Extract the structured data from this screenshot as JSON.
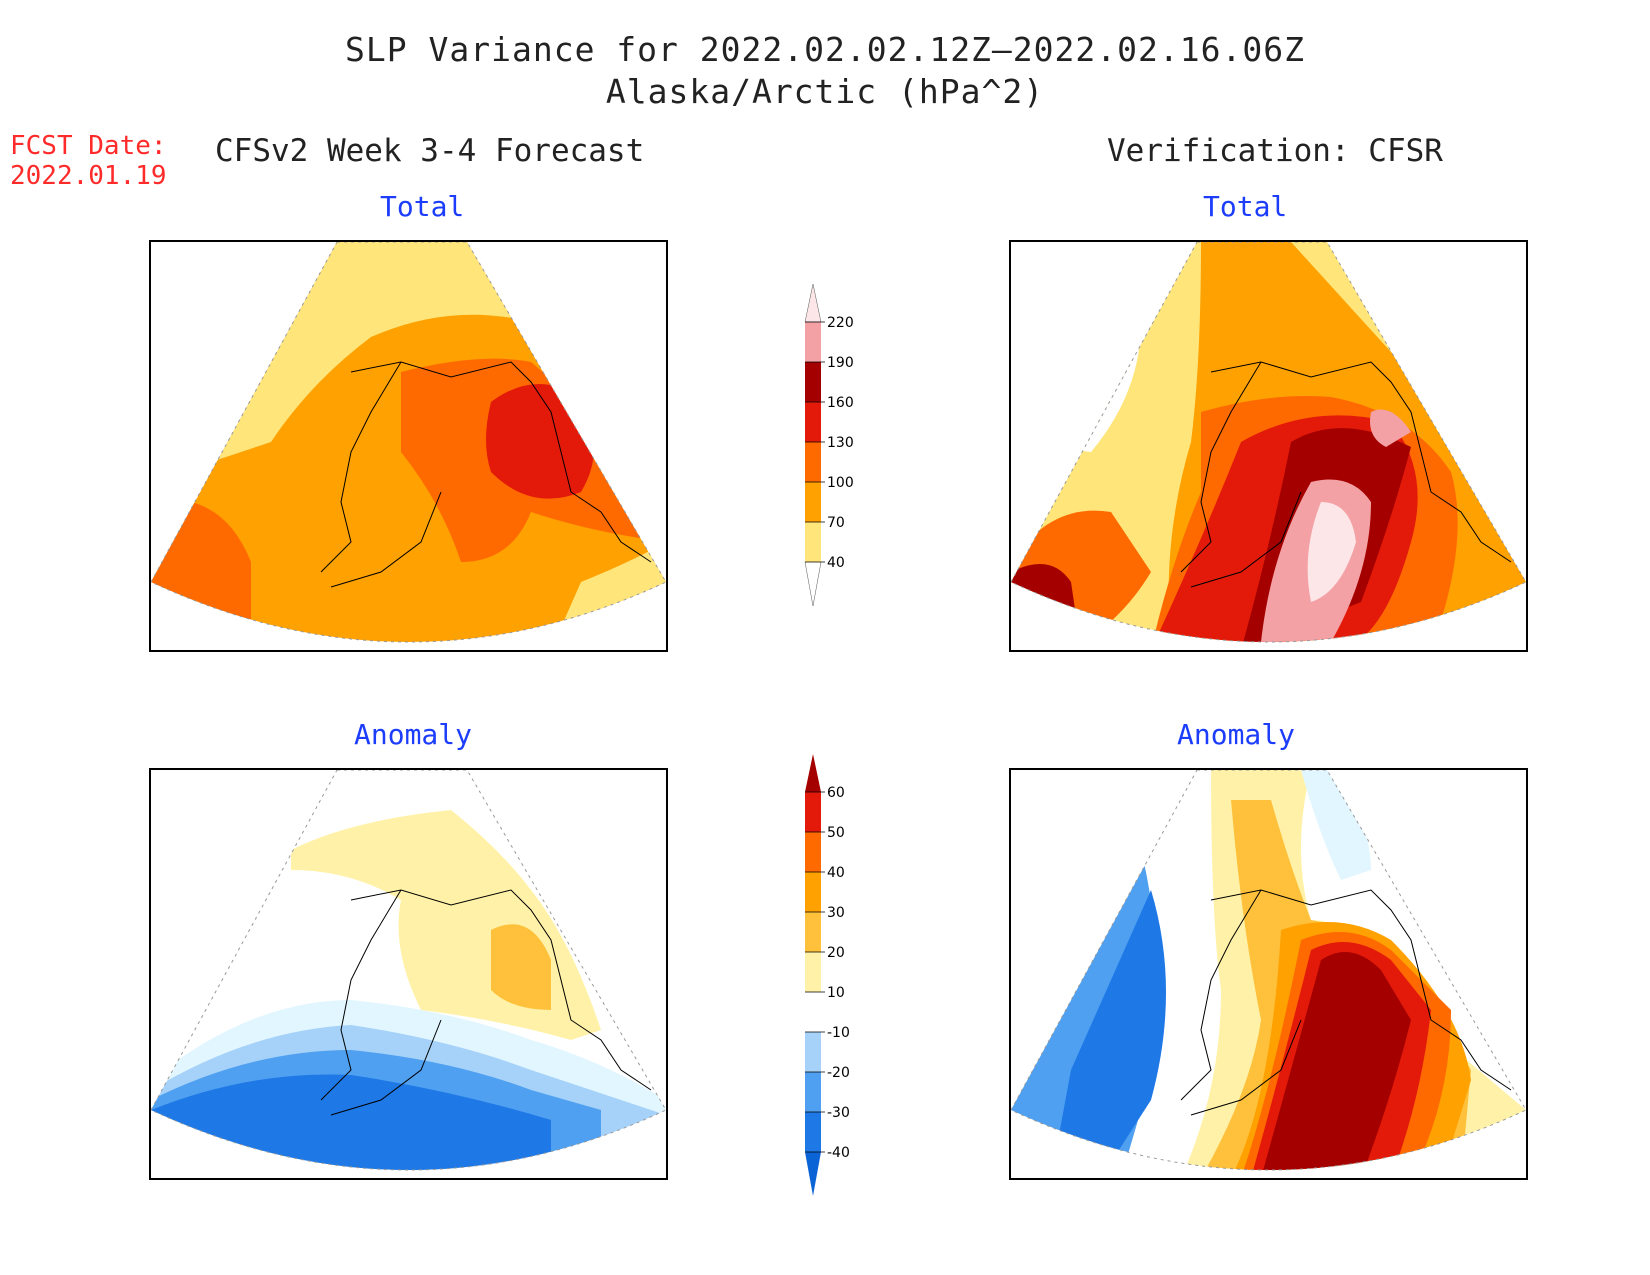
{
  "title": {
    "line1": "SLP Variance for 2022.02.02.12Z—2022.02.16.06Z",
    "line2": "Alaska/Arctic (hPa^2)"
  },
  "fcst": {
    "label": "FCST Date:",
    "date": "2022.01.19"
  },
  "left_header": "CFSv2 Week 3-4 Forecast",
  "right_header": "Verification: CFSR",
  "panels": {
    "forecast_total": {
      "label": "Total"
    },
    "verif_total": {
      "label": "Total"
    },
    "forecast_anom": {
      "label": "Anomaly"
    },
    "verif_anom": {
      "label": "Anomaly"
    }
  },
  "colorbar_total": {
    "levels": [
      "40",
      "70",
      "100",
      "130",
      "160",
      "190",
      "220"
    ],
    "colors": [
      "#ffe57a",
      "#ffa100",
      "#ff6a00",
      "#e31a0a",
      "#a50000",
      "#f3a1a4",
      "#fde6e7"
    ]
  },
  "colorbar_anom": {
    "levels": [
      "-40",
      "-30",
      "-20",
      "-10",
      "10",
      "20",
      "30",
      "40",
      "50",
      "60"
    ],
    "colors": [
      "#0b64d6",
      "#1e78e6",
      "#4fa0f0",
      "#a6d2fa",
      "#e2f6ff",
      "#ffffff",
      "#fff2a8",
      "#ffc13b",
      "#ffa100",
      "#ff6a00",
      "#e31a0a",
      "#a50000"
    ]
  }
}
